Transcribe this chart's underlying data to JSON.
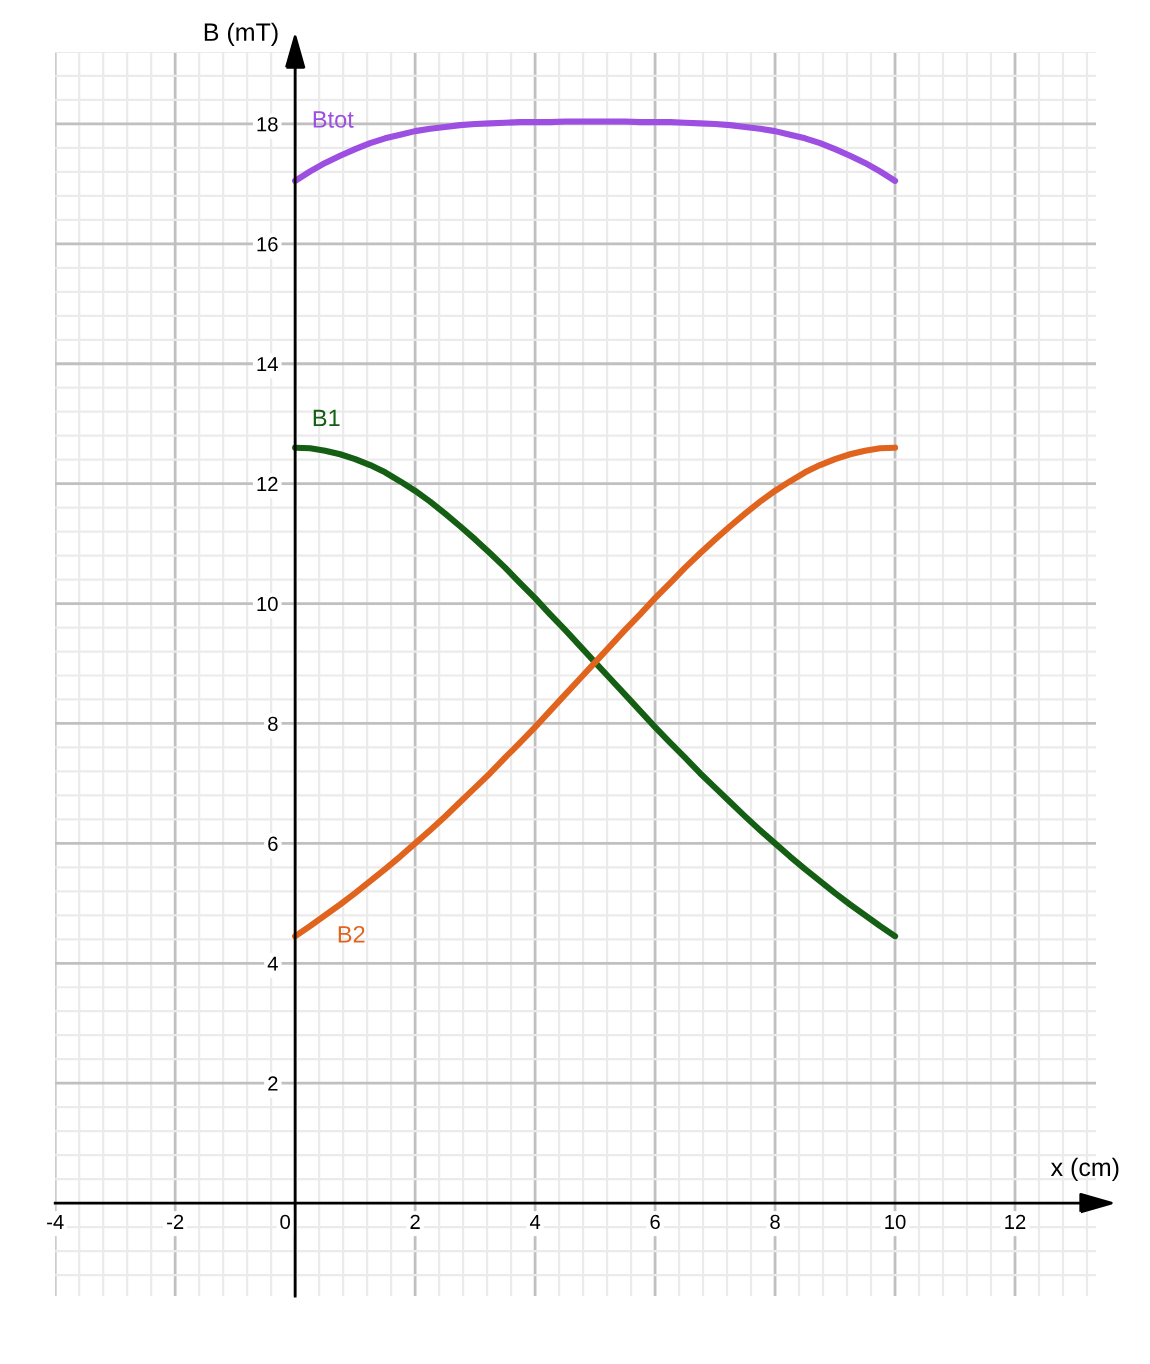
{
  "chart_data": {
    "type": "line",
    "xlabel": "x (cm)",
    "ylabel": "B (mT)",
    "x": [
      0,
      0.25,
      0.5,
      0.75,
      1,
      1.25,
      1.5,
      1.75,
      2,
      2.25,
      2.5,
      2.75,
      3,
      3.25,
      3.5,
      3.75,
      4,
      4.25,
      4.5,
      4.75,
      5,
      5.25,
      5.5,
      5.75,
      6,
      6.25,
      6.5,
      6.75,
      7,
      7.25,
      7.5,
      7.75,
      8,
      8.25,
      8.5,
      8.75,
      9,
      9.25,
      9.5,
      9.75,
      10
    ],
    "series": [
      {
        "name": "Btot",
        "color": "#9c4fe0",
        "values": [
          17.05,
          17.21,
          17.35,
          17.47,
          17.58,
          17.68,
          17.76,
          17.82,
          17.88,
          17.92,
          17.95,
          17.98,
          18.0,
          18.01,
          18.02,
          18.03,
          18.03,
          18.03,
          18.04,
          18.04,
          18.04,
          18.04,
          18.04,
          18.03,
          18.03,
          18.03,
          18.02,
          18.01,
          18.0,
          17.98,
          17.95,
          17.92,
          17.88,
          17.82,
          17.76,
          17.68,
          17.58,
          17.47,
          17.35,
          17.21,
          17.05
        ]
      },
      {
        "name": "B1",
        "color": "#145f14",
        "values": [
          12.6,
          12.59,
          12.55,
          12.49,
          12.41,
          12.31,
          12.19,
          12.04,
          11.88,
          11.7,
          11.5,
          11.29,
          11.07,
          10.84,
          10.6,
          10.34,
          10.09,
          9.82,
          9.56,
          9.29,
          9.02,
          8.75,
          8.48,
          8.21,
          7.94,
          7.68,
          7.43,
          7.17,
          6.93,
          6.69,
          6.45,
          6.22,
          6.0,
          5.78,
          5.57,
          5.37,
          5.17,
          4.98,
          4.8,
          4.62,
          4.45
        ]
      },
      {
        "name": "B2",
        "color": "#e0641e",
        "values": [
          4.45,
          4.62,
          4.8,
          4.98,
          5.17,
          5.37,
          5.57,
          5.78,
          6.0,
          6.22,
          6.45,
          6.69,
          6.93,
          7.17,
          7.43,
          7.68,
          7.94,
          8.21,
          8.48,
          8.75,
          9.02,
          9.29,
          9.56,
          9.82,
          10.09,
          10.34,
          10.6,
          10.84,
          11.07,
          11.29,
          11.5,
          11.7,
          11.88,
          12.04,
          12.19,
          12.31,
          12.41,
          12.49,
          12.55,
          12.59,
          12.6
        ]
      }
    ],
    "xlim": [
      -4,
      13.35
    ],
    "ylim": [
      -1.55,
      19.2
    ],
    "xticks": [
      -4,
      -2,
      0,
      2,
      4,
      6,
      8,
      10,
      12
    ],
    "yticks": [
      2,
      4,
      6,
      8,
      10,
      12,
      14,
      16,
      18
    ],
    "grid": true,
    "line_style": "solid"
  }
}
